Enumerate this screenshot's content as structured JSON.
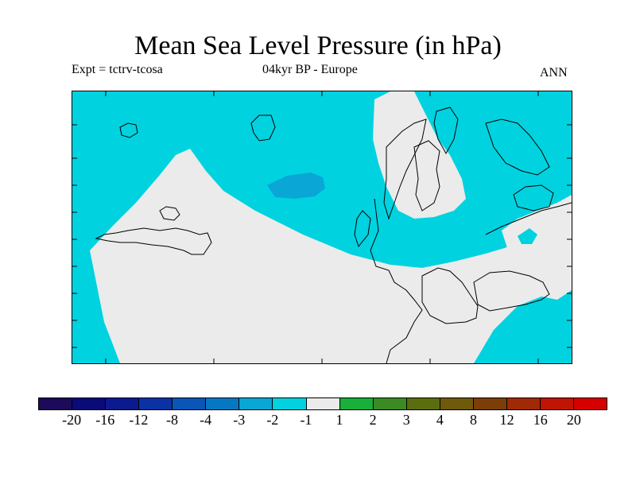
{
  "title": "Mean Sea Level Pressure (in hPa)",
  "subtitle_left": "Expt = tctrv-tcosa",
  "subtitle_center": "04kyr BP - Europe",
  "subtitle_right": "ANN",
  "map": {
    "region": "Europe",
    "variable": "Mean Sea Level Pressure",
    "units": "hPa",
    "field_colors": {
      "negative_2_to_1": "#00d2e0",
      "negative_3_to_2": "#0aa6d6",
      "neutral": "#ebebeb"
    }
  },
  "colorbar": {
    "colors": [
      "#1d0a5a",
      "#0a0a78",
      "#0b1a8f",
      "#0b32a5",
      "#0a55b8",
      "#0578c4",
      "#0aa6d6",
      "#00d2e0",
      "#ebebeb",
      "#1aae3a",
      "#3c8a24",
      "#5a6e10",
      "#6e5a0a",
      "#7c3e08",
      "#a02a06",
      "#c01404",
      "#d60000"
    ],
    "labels": [
      "-20",
      "-16",
      "-12",
      "-8",
      "-4",
      "-3",
      "-2",
      "-1",
      "1",
      "2",
      "3",
      "4",
      "8",
      "12",
      "16",
      "20"
    ]
  }
}
